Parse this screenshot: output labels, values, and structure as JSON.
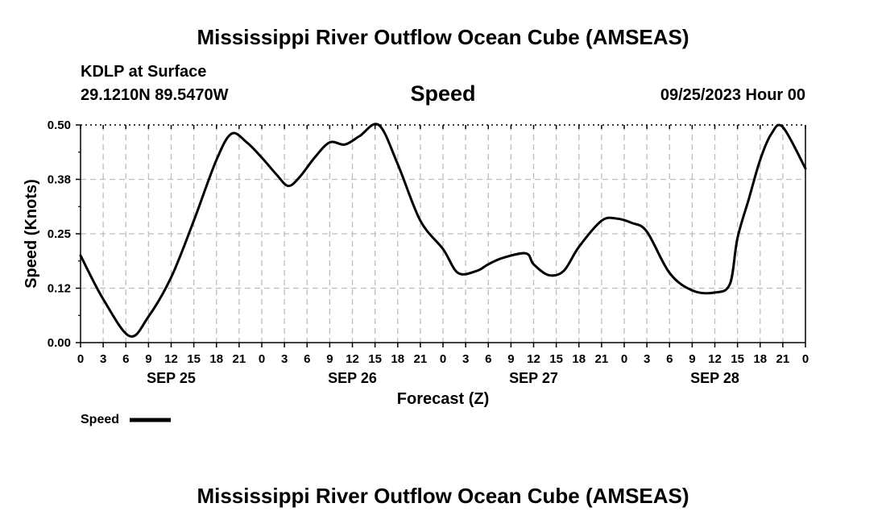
{
  "title": "Mississippi River Outflow Ocean Cube (AMSEAS)",
  "station": "KDLP at Surface",
  "coords": "29.1210N  89.5470W",
  "chart_title": "Speed",
  "datetime": "09/25/2023 Hour 00",
  "footer_title": "Mississippi River Outflow Ocean Cube (AMSEAS)",
  "legend_label": "Speed",
  "colors": {
    "line": "#000000",
    "grid": "#bdbdbd"
  },
  "chart_data": {
    "type": "line",
    "title": "Speed",
    "xlabel": "Forecast (Z)",
    "ylabel": "Speed (Knots)",
    "xlim": [
      0,
      96
    ],
    "ylim": [
      0,
      0.5
    ],
    "grid": true,
    "y_ticks": [
      0.0,
      0.125,
      0.25,
      0.375,
      0.5
    ],
    "y_tick_labels": [
      "0.00",
      "0.12",
      "0.25",
      "0.38",
      "0.50"
    ],
    "x_ticks": [
      0,
      3,
      6,
      9,
      12,
      15,
      18,
      21,
      24,
      27,
      30,
      33,
      36,
      39,
      42,
      45,
      48,
      51,
      54,
      57,
      60,
      63,
      66,
      69,
      72,
      75,
      78,
      81,
      84,
      87,
      90,
      93,
      96
    ],
    "x_tick_labels": [
      "0",
      "3",
      "6",
      "9",
      "12",
      "15",
      "18",
      "21",
      "0",
      "3",
      "6",
      "9",
      "12",
      "15",
      "18",
      "21",
      "0",
      "3",
      "6",
      "9",
      "12",
      "15",
      "18",
      "21",
      "0",
      "3",
      "6",
      "9",
      "12",
      "15",
      "18",
      "21",
      "0"
    ],
    "date_labels": [
      {
        "label": "SEP 25",
        "at_hour": 12
      },
      {
        "label": "SEP 26",
        "at_hour": 36
      },
      {
        "label": "SEP 27",
        "at_hour": 60
      },
      {
        "label": "SEP 28",
        "at_hour": 84
      }
    ],
    "series": [
      {
        "name": "Speed",
        "x": [
          0,
          3,
          6.5,
          9,
          12,
          15,
          18,
          20,
          22,
          24,
          26,
          27.5,
          29,
          31,
          33,
          35,
          37,
          39.5,
          42,
          45,
          48,
          50,
          52.5,
          54,
          56,
          59,
          60,
          62,
          64,
          66,
          69,
          71,
          73,
          75,
          78,
          81,
          84,
          86,
          87,
          88.5,
          90,
          91.5,
          93,
          96
        ],
        "values": [
          0.2,
          0.1,
          0.015,
          0.06,
          0.15,
          0.28,
          0.42,
          0.48,
          0.46,
          0.425,
          0.385,
          0.36,
          0.38,
          0.425,
          0.46,
          0.455,
          0.475,
          0.5,
          0.41,
          0.28,
          0.215,
          0.16,
          0.165,
          0.18,
          0.195,
          0.205,
          0.18,
          0.155,
          0.165,
          0.22,
          0.28,
          0.285,
          0.275,
          0.255,
          0.16,
          0.12,
          0.115,
          0.135,
          0.24,
          0.33,
          0.42,
          0.48,
          0.495,
          0.4
        ]
      }
    ]
  }
}
